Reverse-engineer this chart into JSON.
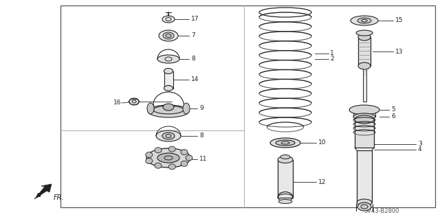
{
  "bg_color": "#ffffff",
  "border_color": "#444444",
  "line_color": "#222222",
  "text_color": "#222222",
  "watermark": "SV43-B2800",
  "fig_width": 6.4,
  "fig_height": 3.19,
  "dpi": 100
}
